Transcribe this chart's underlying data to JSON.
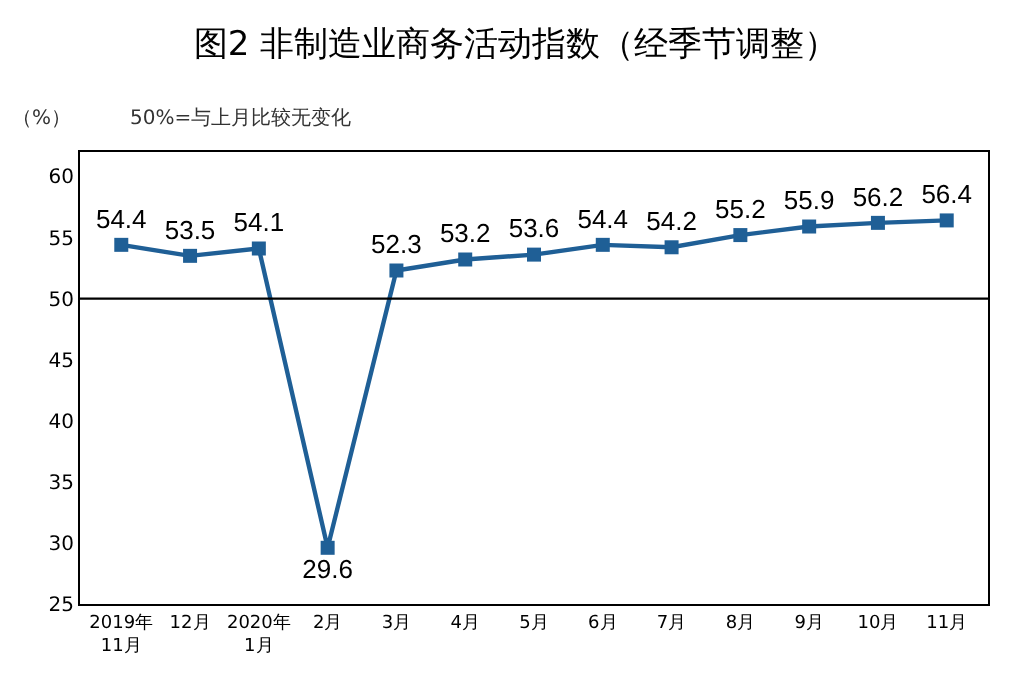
{
  "chart_data": {
    "type": "line",
    "title": "图2 非制造业商务活动指数（经季节调整）",
    "annotations": [
      "（%）",
      "50%=与上月比较无变化"
    ],
    "categories": [
      "2019年\n11月",
      "12月",
      "2020年\n1月",
      "2月",
      "3月",
      "4月",
      "5月",
      "6月",
      "7月",
      "8月",
      "9月",
      "10月",
      "11月"
    ],
    "series": [
      {
        "color": "#1f5f96",
        "values": [
          54.4,
          53.5,
          54.1,
          29.6,
          52.3,
          53.2,
          53.6,
          54.4,
          54.2,
          55.2,
          55.9,
          56.2,
          56.4
        ]
      }
    ],
    "ylim": [
      25,
      62
    ],
    "yticks": [
      25,
      30,
      35,
      40,
      45,
      50,
      55,
      60
    ],
    "ref_lines": [
      {
        "axis": "y",
        "value": 50,
        "color": "#000000"
      }
    ],
    "data_labels": true,
    "marker": "square",
    "line_style": "solid"
  }
}
